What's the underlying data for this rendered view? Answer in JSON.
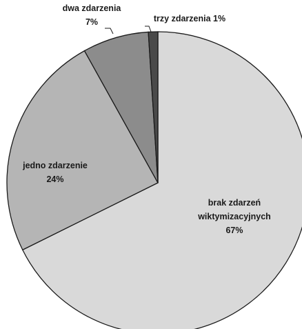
{
  "chart_data": {
    "type": "pie",
    "start_angle_deg": 0,
    "direction": "clockwise",
    "slices": [
      {
        "label_lines": [
          "brak zdarzeń",
          "wiktymizacyjnych",
          "67%"
        ],
        "value": 67,
        "color": "#d9d9d9"
      },
      {
        "label_lines": [
          "jedno zdarzenie",
          "24%"
        ],
        "value": 24,
        "color": "#b5b5b5"
      },
      {
        "label_lines": [
          "dwa zdarzenia",
          "7%"
        ],
        "value": 7,
        "color": "#8c8c8c"
      },
      {
        "label_lines": [
          "trzy zdarzenia 1%"
        ],
        "value": 1,
        "color": "#4a4a4a"
      }
    ]
  }
}
